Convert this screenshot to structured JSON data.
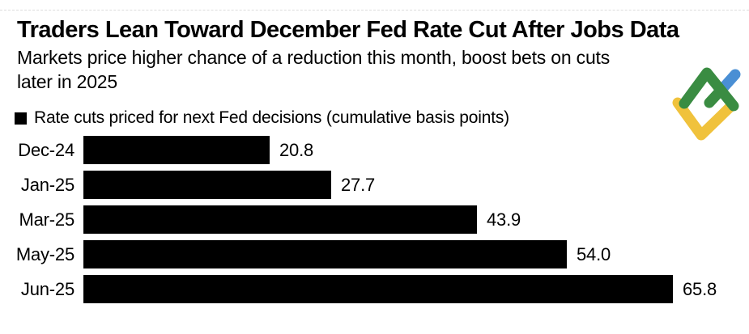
{
  "header": {
    "title": "Traders Lean Toward December Fed Rate Cut After Jobs Data",
    "subtitle_lines": [
      "Markets price higher chance of a reduction this month, boost bets on cuts",
      "later in 2025"
    ]
  },
  "legend": {
    "label": "Rate cuts priced for next Fed decisions (cumulative basis points)",
    "marker_color": "#000000"
  },
  "logo": {
    "name": "litefinance-logo",
    "colors": {
      "green": "#3a8c42",
      "yellow": "#f0c23c",
      "blue": "#4a8fd4"
    }
  },
  "chart_data": {
    "type": "bar",
    "orientation": "horizontal",
    "title": "Rate cuts priced for next Fed decisions (cumulative basis points)",
    "categories": [
      "Dec-24",
      "Jan-25",
      "Mar-25",
      "May-25",
      "Jun-25"
    ],
    "values": [
      20.8,
      27.7,
      43.9,
      54.0,
      65.8
    ],
    "value_labels": [
      "20.8",
      "27.7",
      "43.9",
      "54.0",
      "65.8"
    ],
    "bar_color": "#000000",
    "xlim": [
      0,
      70
    ],
    "grid": false,
    "legend_position": "top-left",
    "value_label_position": "end-of-bar"
  }
}
